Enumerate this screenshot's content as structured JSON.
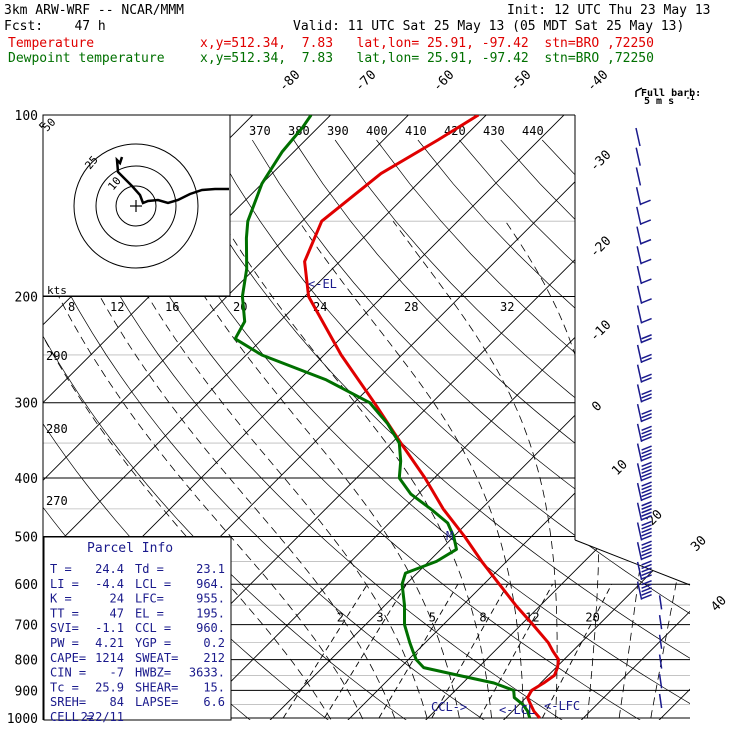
{
  "header": {
    "model": "3km ARW-WRF -- NCAR/MMM",
    "init": "Init: 12 UTC Thu 23 May 13",
    "fcst": "Fcst:    47 h",
    "valid": "Valid: 11 UTC Sat 25 May 13 (05 MDT Sat 25 May 13)",
    "temp_label": "Temperature",
    "temp_loc": "x,y=512.34,  7.83   lat,lon= 25.91, -97.42  stn=BRO ,72250",
    "dew_label": "Dewpoint temperature",
    "dew_loc": "x,y=512.34,  7.83   lat,lon= 25.91, -97.42  stn=BRO ,72250"
  },
  "colors": {
    "temp": "#e00000",
    "dew": "#007000",
    "wind": "#1a1a8c",
    "hodo": "#000000"
  },
  "barb_legend": {
    "line1": "Full barb:",
    "line2": "5 m s",
    "sup": "-1"
  },
  "chart_data": {
    "type": "skew-t",
    "title": "3km ARW-WRF sounding BRO 72250",
    "pressure_levels": [
      100,
      200,
      300,
      400,
      500,
      600,
      700,
      800,
      900,
      1000
    ],
    "isotherms": [
      -80,
      -70,
      -60,
      -50,
      -40,
      -30,
      -20,
      -10,
      0,
      10,
      20,
      30,
      40
    ],
    "theta_e_labels": [
      370,
      380,
      390,
      400,
      410,
      420,
      430,
      440
    ],
    "mixing_ratio_labels": [
      2,
      3,
      5,
      8,
      12,
      20
    ],
    "adiabat_labels": [
      290,
      280,
      270
    ],
    "series": [
      {
        "name": "Temperature",
        "p": [
          1000,
          975,
          950,
          925,
          900,
          875,
          850,
          825,
          800,
          775,
          750,
          700,
          650,
          600,
          550,
          500,
          450,
          400,
          350,
          300,
          250,
          200,
          175,
          150,
          125,
          110,
          100
        ],
        "t": [
          24.4,
          22.8,
          21.5,
          20.2,
          19.8,
          20.4,
          20.8,
          20.2,
          19.3,
          17.5,
          15.8,
          11.5,
          6.8,
          2.0,
          -3.2,
          -8.6,
          -14.9,
          -21.2,
          -28.8,
          -37.4,
          -47.8,
          -59.5,
          -64.5,
          -67.5,
          -66.0,
          -63.0,
          -61.0
        ]
      },
      {
        "name": "Dewpoint temperature",
        "p": [
          1000,
          975,
          950,
          925,
          900,
          875,
          850,
          825,
          800,
          775,
          750,
          700,
          650,
          600,
          575,
          550,
          525,
          500,
          475,
          450,
          425,
          400,
          375,
          350,
          325,
          300,
          275,
          250,
          235,
          220,
          200,
          180,
          160,
          150,
          130,
          115,
          105,
          100
        ],
        "t": [
          23.1,
          22.0,
          20.5,
          18.5,
          17.5,
          14.0,
          8.5,
          3.0,
          1.0,
          -0.5,
          -2.0,
          -5.0,
          -7.5,
          -10.5,
          -11.5,
          -9.0,
          -8.0,
          -10.0,
          -12.5,
          -16.5,
          -21.0,
          -24.5,
          -26.5,
          -29.0,
          -33.0,
          -38.0,
          -46.5,
          -58.0,
          -63.5,
          -64.5,
          -68.0,
          -71.0,
          -75.0,
          -77.0,
          -80.0,
          -81.5,
          -82.0,
          -82.5
        ]
      }
    ],
    "wind_barbs_ms": [
      1.5,
      1.5,
      2.0,
      2.5,
      3.0,
      3.0,
      3.5,
      4.0,
      5,
      6,
      8,
      10,
      12,
      14,
      17,
      19,
      21,
      23,
      25,
      27,
      30,
      32,
      34,
      36,
      34,
      32,
      28,
      24,
      20,
      18
    ],
    "hodograph": {
      "label_kts": "kts",
      "rings": [
        "5",
        "10",
        "25",
        "50"
      ]
    },
    "markers": [
      {
        "name": "EL",
        "label": "<-EL",
        "p": 195
      },
      {
        "name": "MPL",
        "label": "M",
        "p": 480
      },
      {
        "name": "CCL",
        "label": "CCL->",
        "p": 960
      },
      {
        "name": "LCL",
        "label": "<-LCL",
        "p": 964
      },
      {
        "name": "LFC",
        "label": "<-LFC",
        "p": 955
      }
    ]
  },
  "parcel_info": {
    "title": "Parcel Info",
    "rows": [
      [
        "T  =",
        "24.4",
        "Td =",
        "23.1"
      ],
      [
        "LI =",
        "-4.4",
        "LCL =",
        "964."
      ],
      [
        "K  =",
        "24",
        "LFC=",
        "955."
      ],
      [
        "TT =",
        "47",
        "EL =",
        "195."
      ],
      [
        "SVI=",
        "-1.1",
        "CCL =",
        "960."
      ],
      [
        "PW =",
        "4.21",
        "YGP =",
        "0.2"
      ],
      [
        "CAPE=",
        "1214",
        "SWEAT=",
        "212"
      ],
      [
        "CIN =",
        "-7",
        "HWBZ=",
        "3633."
      ],
      [
        "Tc =",
        "25.9",
        "SHEAR=",
        "15."
      ],
      [
        "SREH=",
        "84",
        "LAPSE=",
        "6.6"
      ],
      [
        "CELL =",
        "222/11",
        "",
        ""
      ]
    ]
  }
}
